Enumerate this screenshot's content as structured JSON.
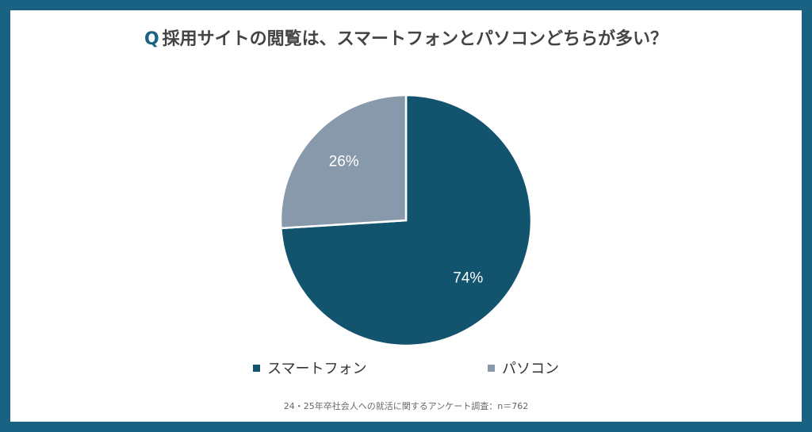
{
  "header": {
    "q_mark": "Q",
    "question": "採用サイトの閲覧は、スマートフォンとパソコンどちらが多い？"
  },
  "chart_data": {
    "type": "pie",
    "categories": [
      "スマートフォン",
      "パソコン"
    ],
    "values": [
      74,
      26
    ],
    "labels": [
      "74%",
      "26%"
    ],
    "colors": [
      "#12536e",
      "#8799aa"
    ],
    "legend_position": "bottom"
  },
  "footnote": "24・25年卒社会人への就活に関するアンケート調査：n＝762"
}
